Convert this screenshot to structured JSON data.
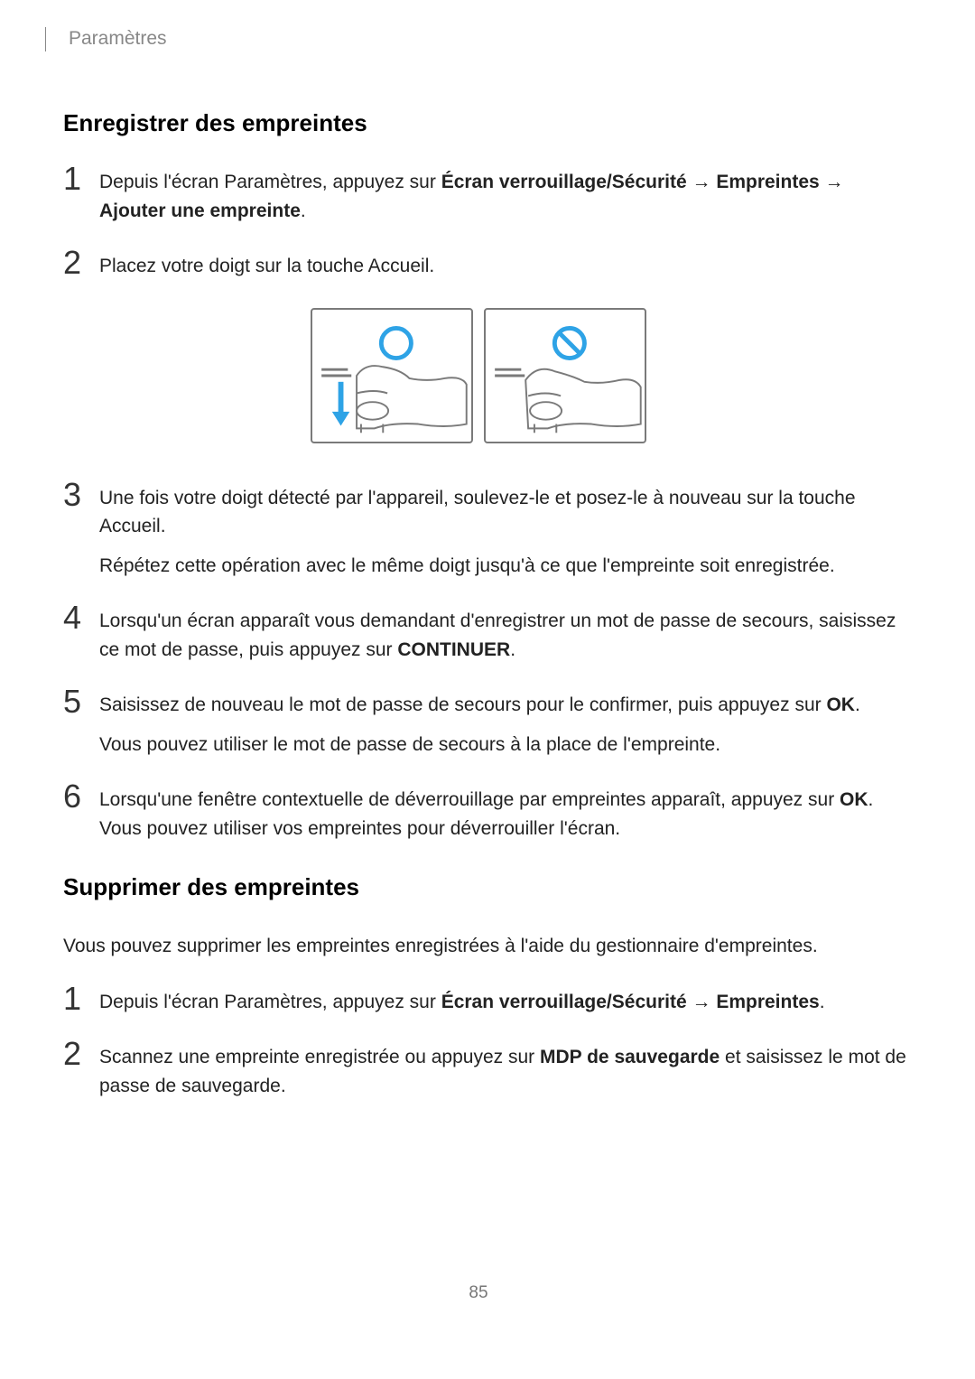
{
  "header": {
    "breadcrumb": "Paramètres"
  },
  "section1": {
    "heading": "Enregistrer des empreintes",
    "steps": [
      {
        "num": "1",
        "parts": [
          {
            "t": "Depuis l'écran Paramètres, appuyez sur ",
            "b": false
          },
          {
            "t": "Écran verrouillage/Sécurité",
            "b": true
          },
          {
            "t": " → ",
            "b": false
          },
          {
            "t": "Empreintes",
            "b": true
          },
          {
            "t": " → ",
            "b": false
          },
          {
            "t": "Ajouter une empreinte",
            "b": true
          },
          {
            "t": ".",
            "b": false
          }
        ]
      },
      {
        "num": "2",
        "parts": [
          {
            "t": "Placez votre doigt sur la touche Accueil.",
            "b": false
          }
        ]
      },
      {
        "num": "3",
        "parts": [
          {
            "t": "Une fois votre doigt détecté par l'appareil, soulevez-le et posez-le à nouveau sur la touche Accueil.",
            "b": false
          }
        ],
        "extra": [
          {
            "t": "Répétez cette opération avec le même doigt jusqu'à ce que l'empreinte soit enregistrée.",
            "b": false
          }
        ]
      },
      {
        "num": "4",
        "parts": [
          {
            "t": "Lorsqu'un écran apparaît vous demandant d'enregistrer un mot de passe de secours, saisissez ce mot de passe, puis appuyez sur ",
            "b": false
          },
          {
            "t": "CONTINUER",
            "b": true
          },
          {
            "t": ".",
            "b": false
          }
        ]
      },
      {
        "num": "5",
        "parts": [
          {
            "t": "Saisissez de nouveau le mot de passe de secours pour le confirmer, puis appuyez sur ",
            "b": false
          },
          {
            "t": "OK",
            "b": true
          },
          {
            "t": ".",
            "b": false
          }
        ],
        "extra": [
          {
            "t": "Vous pouvez utiliser le mot de passe de secours à la place de l'empreinte.",
            "b": false
          }
        ]
      },
      {
        "num": "6",
        "parts": [
          {
            "t": "Lorsqu'une fenêtre contextuelle de déverrouillage par empreintes apparaît, appuyez sur ",
            "b": false
          },
          {
            "t": "OK",
            "b": true
          },
          {
            "t": ". Vous pouvez utiliser vos empreintes pour déverrouiller l'écran.",
            "b": false
          }
        ]
      }
    ]
  },
  "section2": {
    "heading": "Supprimer des empreintes",
    "intro": "Vous pouvez supprimer les empreintes enregistrées à l'aide du gestionnaire d'empreintes.",
    "steps": [
      {
        "num": "1",
        "parts": [
          {
            "t": "Depuis l'écran Paramètres, appuyez sur ",
            "b": false
          },
          {
            "t": "Écran verrouillage/Sécurité",
            "b": true
          },
          {
            "t": " → ",
            "b": false
          },
          {
            "t": "Empreintes",
            "b": true
          },
          {
            "t": ".",
            "b": false
          }
        ]
      },
      {
        "num": "2",
        "parts": [
          {
            "t": "Scannez une empreinte enregistrée ou appuyez sur ",
            "b": false
          },
          {
            "t": "MDP de sauvegarde",
            "b": true
          },
          {
            "t": " et saisissez le mot de passe de sauvegarde.",
            "b": false
          }
        ]
      }
    ]
  },
  "diagram": {
    "accent_color": "#2ea3e6",
    "stroke_color": "#7a7a7a",
    "prohibit_color": "#2ea3e6"
  },
  "footer": {
    "page_number": "85"
  }
}
